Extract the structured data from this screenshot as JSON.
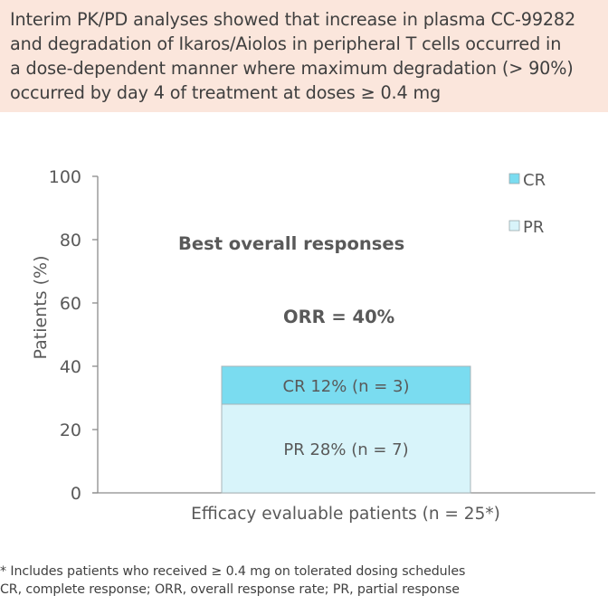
{
  "callout": {
    "lines": [
      "Interim PK/PD analyses showed that increase in plasma CC-99282",
      "and degradation of Ikaros/Aiolos in peripheral T cells occurred in",
      "a dose-dependent manner where maximum degradation (> 90%)",
      "occurred by day 4 of treatment at doses ≥ 0.4 mg"
    ]
  },
  "chart_data": {
    "type": "bar",
    "stacked": true,
    "title": "Best overall responses",
    "annotation": "ORR = 40%",
    "xlabel": "Efficacy evaluable patients (n = 25*)",
    "ylabel": "Patients (%)",
    "ylim": [
      0,
      100
    ],
    "yticks": [
      "0",
      "20",
      "40",
      "60",
      "80",
      "100"
    ],
    "categories": [
      "Efficacy evaluable patients"
    ],
    "series": [
      {
        "name": "PR",
        "values": [
          28
        ],
        "label": "PR 28% (n = 7)",
        "color": "#d8f4fa"
      },
      {
        "name": "CR",
        "values": [
          12
        ],
        "label": "CR 12% (n = 3)",
        "color": "#7adcf0"
      }
    ],
    "legend": {
      "position": "top-right",
      "entries": [
        "CR",
        "PR"
      ]
    },
    "grid": false
  },
  "footnotes": [
    "* Includes patients who received ≥ 0.4 mg on tolerated dosing schedules",
    "CR, complete response; ORR, overall response rate; PR, partial response"
  ]
}
